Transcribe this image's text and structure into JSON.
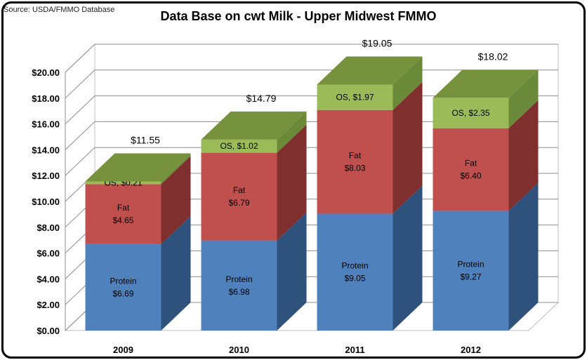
{
  "source": "Source: USDA/FMMO Database",
  "chart_data": {
    "type": "bar",
    "stacked": true,
    "three_d": true,
    "title": "Data Base on cwt Milk - Upper Midwest FMMO",
    "xlabel": "",
    "ylabel": "",
    "ylim": [
      0,
      20
    ],
    "y_ticks": [
      "$0.00",
      "$2.00",
      "$4.00",
      "$6.00",
      "$8.00",
      "$10.00",
      "$12.00",
      "$14.00",
      "$16.00",
      "$18.00",
      "$20.00"
    ],
    "categories": [
      "2009",
      "2010",
      "2011",
      "2012"
    ],
    "series": [
      {
        "name": "Protein",
        "color": "#4f81bd",
        "side": "#2f527d",
        "top": "#7399cf",
        "values": [
          6.69,
          6.98,
          9.05,
          9.27
        ],
        "labels": [
          "Protein\n$6.69",
          "Protein\n$6.98",
          "Protein\n$9.05",
          "Protein\n$9.27"
        ]
      },
      {
        "name": "Fat",
        "color": "#c0504d",
        "side": "#7f302e",
        "top": "#d4726f",
        "values": [
          4.65,
          6.79,
          8.03,
          6.4
        ],
        "labels": [
          "Fat\n$4.65",
          "Fat\n$6.79",
          "Fat\n$8.03",
          "Fat\n$6.40"
        ]
      },
      {
        "name": "OS",
        "color": "#9bbb59",
        "side": "#6a8a3a",
        "top": "#76923c",
        "values": [
          0.21,
          1.02,
          1.97,
          2.35
        ],
        "labels": [
          "OS, $0.21",
          "OS, $1.02",
          "OS, $1.97",
          "OS, $2.35"
        ]
      }
    ],
    "totals": [
      "$11.55",
      "$14.79",
      "$19.05",
      "$18.02"
    ],
    "grid": true,
    "legend": "none"
  }
}
